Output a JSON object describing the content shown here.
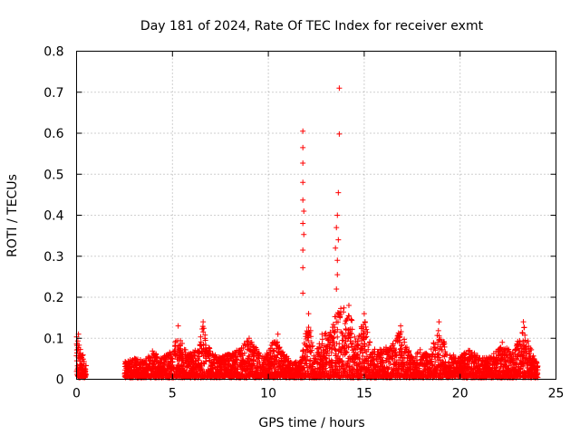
{
  "chart_data": {
    "type": "scatter",
    "title": "Day 181 of 2024, Rate Of TEC Index for receiver exmt",
    "xlabel": "GPS time / hours",
    "ylabel": "ROTI / TECUs",
    "xlim": [
      0,
      25
    ],
    "ylim": [
      0,
      0.8
    ],
    "x_ticks": [
      "0",
      "5",
      "10",
      "15",
      "20",
      "25"
    ],
    "y_ticks": [
      "0",
      "0.1",
      "0.2",
      "0.3",
      "0.4",
      "0.5",
      "0.6",
      "0.7",
      "0.8"
    ],
    "grid": true,
    "marker": "+",
    "color": "#ff0000",
    "data_gap_hours": [
      0.5,
      2.5
    ],
    "peaks": [
      {
        "x": 0.1,
        "y": 0.11
      },
      {
        "x": 5.3,
        "y": 0.13
      },
      {
        "x": 6.6,
        "y": 0.14
      },
      {
        "x": 9.0,
        "y": 0.1
      },
      {
        "x": 10.5,
        "y": 0.11
      },
      {
        "x": 11.8,
        "y": 0.605
      },
      {
        "x": 11.8,
        "y": 0.565
      },
      {
        "x": 11.8,
        "y": 0.527
      },
      {
        "x": 11.8,
        "y": 0.48
      },
      {
        "x": 11.8,
        "y": 0.437
      },
      {
        "x": 11.85,
        "y": 0.41
      },
      {
        "x": 11.8,
        "y": 0.38
      },
      {
        "x": 11.85,
        "y": 0.353
      },
      {
        "x": 11.8,
        "y": 0.315
      },
      {
        "x": 11.8,
        "y": 0.272
      },
      {
        "x": 11.8,
        "y": 0.21
      },
      {
        "x": 12.1,
        "y": 0.16
      },
      {
        "x": 12.8,
        "y": 0.11
      },
      {
        "x": 13.7,
        "y": 0.71
      },
      {
        "x": 13.7,
        "y": 0.598
      },
      {
        "x": 13.65,
        "y": 0.455
      },
      {
        "x": 13.6,
        "y": 0.4
      },
      {
        "x": 13.55,
        "y": 0.37
      },
      {
        "x": 13.65,
        "y": 0.34
      },
      {
        "x": 13.5,
        "y": 0.32
      },
      {
        "x": 13.6,
        "y": 0.29
      },
      {
        "x": 13.6,
        "y": 0.255
      },
      {
        "x": 13.55,
        "y": 0.22
      },
      {
        "x": 14.2,
        "y": 0.18
      },
      {
        "x": 15.0,
        "y": 0.16
      },
      {
        "x": 16.9,
        "y": 0.13
      },
      {
        "x": 18.9,
        "y": 0.14
      },
      {
        "x": 20.5,
        "y": 0.07
      },
      {
        "x": 22.2,
        "y": 0.09
      },
      {
        "x": 23.3,
        "y": 0.14
      }
    ],
    "envelope": [
      {
        "x": 0.0,
        "y": 0.1
      },
      {
        "x": 0.2,
        "y": 0.08
      },
      {
        "x": 0.5,
        "y": 0.03
      },
      {
        "x": 2.6,
        "y": 0.04
      },
      {
        "x": 3.0,
        "y": 0.05
      },
      {
        "x": 3.5,
        "y": 0.04
      },
      {
        "x": 3.9,
        "y": 0.07
      },
      {
        "x": 4.3,
        "y": 0.05
      },
      {
        "x": 4.8,
        "y": 0.06
      },
      {
        "x": 5.3,
        "y": 0.1
      },
      {
        "x": 5.8,
        "y": 0.06
      },
      {
        "x": 6.3,
        "y": 0.07
      },
      {
        "x": 6.6,
        "y": 0.13
      },
      {
        "x": 7.0,
        "y": 0.06
      },
      {
        "x": 7.5,
        "y": 0.05
      },
      {
        "x": 8.0,
        "y": 0.06
      },
      {
        "x": 8.5,
        "y": 0.07
      },
      {
        "x": 9.0,
        "y": 0.1
      },
      {
        "x": 9.4,
        "y": 0.07
      },
      {
        "x": 9.8,
        "y": 0.05
      },
      {
        "x": 10.4,
        "y": 0.1
      },
      {
        "x": 10.8,
        "y": 0.06
      },
      {
        "x": 11.3,
        "y": 0.04
      },
      {
        "x": 11.7,
        "y": 0.04
      },
      {
        "x": 12.1,
        "y": 0.15
      },
      {
        "x": 12.4,
        "y": 0.06
      },
      {
        "x": 12.8,
        "y": 0.1
      },
      {
        "x": 13.2,
        "y": 0.12
      },
      {
        "x": 13.7,
        "y": 0.18
      },
      {
        "x": 14.2,
        "y": 0.17
      },
      {
        "x": 14.6,
        "y": 0.1
      },
      {
        "x": 15.0,
        "y": 0.15
      },
      {
        "x": 15.4,
        "y": 0.07
      },
      {
        "x": 15.9,
        "y": 0.07
      },
      {
        "x": 16.4,
        "y": 0.08
      },
      {
        "x": 16.9,
        "y": 0.12
      },
      {
        "x": 17.4,
        "y": 0.06
      },
      {
        "x": 17.9,
        "y": 0.07
      },
      {
        "x": 18.4,
        "y": 0.06
      },
      {
        "x": 18.9,
        "y": 0.12
      },
      {
        "x": 19.4,
        "y": 0.06
      },
      {
        "x": 19.9,
        "y": 0.05
      },
      {
        "x": 20.5,
        "y": 0.07
      },
      {
        "x": 21.0,
        "y": 0.05
      },
      {
        "x": 21.5,
        "y": 0.05
      },
      {
        "x": 22.0,
        "y": 0.07
      },
      {
        "x": 22.3,
        "y": 0.08
      },
      {
        "x": 22.8,
        "y": 0.06
      },
      {
        "x": 23.3,
        "y": 0.13
      },
      {
        "x": 23.7,
        "y": 0.07
      },
      {
        "x": 24.0,
        "y": 0.04
      }
    ]
  }
}
